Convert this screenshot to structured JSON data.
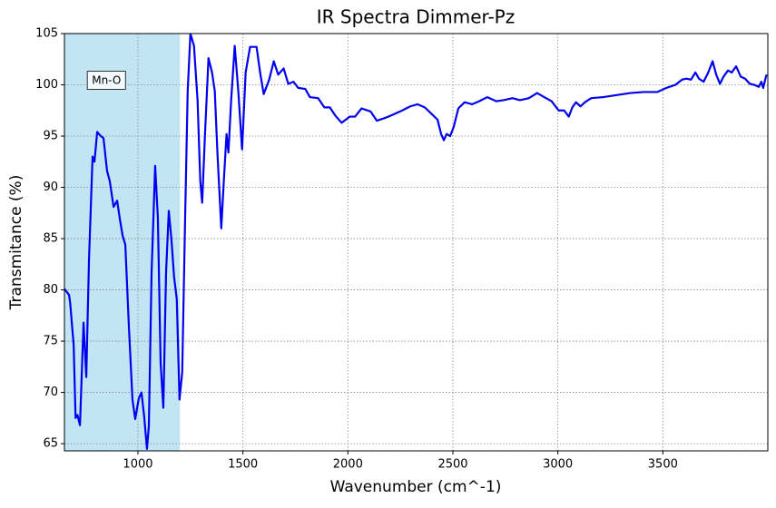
{
  "chart_data": {
    "type": "line",
    "title": "IR Spectra Dimmer-Pz",
    "x_label": "Wavenumber (cm^-1)",
    "y_label": "Transmitance (%)",
    "xlim": [
      650,
      4000
    ],
    "ylim": [
      64.3,
      105
    ],
    "xticks": [
      1000,
      1500,
      2000,
      2500,
      3000,
      3500
    ],
    "yticks": [
      65,
      70,
      75,
      80,
      85,
      90,
      95,
      100,
      105
    ],
    "grid": true,
    "spans": [
      {
        "x0": 650,
        "x1": 1200,
        "color": "#c2e5f4"
      }
    ],
    "annotations": [
      {
        "text": "Mn-O",
        "x": 850,
        "y": 100.4,
        "color": "#0000ff"
      }
    ],
    "x": [
      650,
      672,
      677,
      694,
      703,
      712,
      724,
      741,
      754,
      767,
      784,
      793,
      806,
      823,
      836,
      853,
      866,
      884,
      901,
      914,
      927,
      940,
      957,
      974,
      987,
      1004,
      1017,
      1030,
      1043,
      1052,
      1065,
      1082,
      1095,
      1108,
      1121,
      1134,
      1147,
      1160,
      1172,
      1185,
      1198,
      1211,
      1224,
      1237,
      1250,
      1267,
      1284,
      1297,
      1306,
      1319,
      1336,
      1353,
      1366,
      1379,
      1397,
      1409,
      1422,
      1431,
      1444,
      1461,
      1478,
      1496,
      1513,
      1534,
      1565,
      1582,
      1599,
      1625,
      1647,
      1668,
      1694,
      1716,
      1741,
      1763,
      1797,
      1819,
      1858,
      1888,
      1914,
      1940,
      1970,
      2009,
      2034,
      2065,
      2108,
      2138,
      2181,
      2216,
      2259,
      2297,
      2332,
      2366,
      2397,
      2427,
      2444,
      2457,
      2470,
      2487,
      2504,
      2526,
      2556,
      2591,
      2625,
      2664,
      2707,
      2741,
      2784,
      2819,
      2862,
      2901,
      2935,
      2970,
      3004,
      3030,
      3052,
      3069,
      3086,
      3108,
      3129,
      3159,
      3216,
      3280,
      3345,
      3409,
      3474,
      3517,
      3560,
      3591,
      3612,
      3634,
      3655,
      3672,
      3694,
      3716,
      3737,
      3754,
      3772,
      3789,
      3810,
      3828,
      3849,
      3871,
      3892,
      3914,
      3935,
      3957,
      3969,
      3978,
      3991,
      3995
    ],
    "series": [
      {
        "name": "Dimmer-Pz",
        "color": "#0000ee",
        "values": [
          80.1,
          79.5,
          78.8,
          74.6,
          67.5,
          67.8,
          66.8,
          76.8,
          71.5,
          83.0,
          93.0,
          92.5,
          95.4,
          95.0,
          94.8,
          91.6,
          90.6,
          88.1,
          88.7,
          86.9,
          85.3,
          84.4,
          76.4,
          69.3,
          67.4,
          69.4,
          70.0,
          67.6,
          64.5,
          66.7,
          81.7,
          92.1,
          87.0,
          72.9,
          68.5,
          81.7,
          87.7,
          84.8,
          81.3,
          79.1,
          69.3,
          72.0,
          86.2,
          99.4,
          105.0,
          103.8,
          98.5,
          90.6,
          88.5,
          95.0,
          102.6,
          101.2,
          99.4,
          93.2,
          86.0,
          90.6,
          95.2,
          93.4,
          98.5,
          103.8,
          99.4,
          93.7,
          101.2,
          103.7,
          103.7,
          101.2,
          99.1,
          100.5,
          102.3,
          101.0,
          101.6,
          100.1,
          100.3,
          99.7,
          99.6,
          98.8,
          98.7,
          97.8,
          97.8,
          97.0,
          96.3,
          96.9,
          96.9,
          97.7,
          97.4,
          96.5,
          96.8,
          97.1,
          97.5,
          97.9,
          98.1,
          97.8,
          97.2,
          96.6,
          95.2,
          94.6,
          95.2,
          95.0,
          95.9,
          97.7,
          98.3,
          98.1,
          98.4,
          98.8,
          98.4,
          98.5,
          98.7,
          98.5,
          98.7,
          99.2,
          98.8,
          98.4,
          97.5,
          97.5,
          96.9,
          97.8,
          98.3,
          97.9,
          98.3,
          98.7,
          98.8,
          99.0,
          99.2,
          99.3,
          99.3,
          99.7,
          100.0,
          100.5,
          100.6,
          100.5,
          101.2,
          100.6,
          100.3,
          101.2,
          102.3,
          101.0,
          100.1,
          100.8,
          101.4,
          101.2,
          101.8,
          100.8,
          100.6,
          100.1,
          100.0,
          99.8,
          100.3,
          99.7,
          100.8,
          101.0
        ]
      }
    ]
  }
}
